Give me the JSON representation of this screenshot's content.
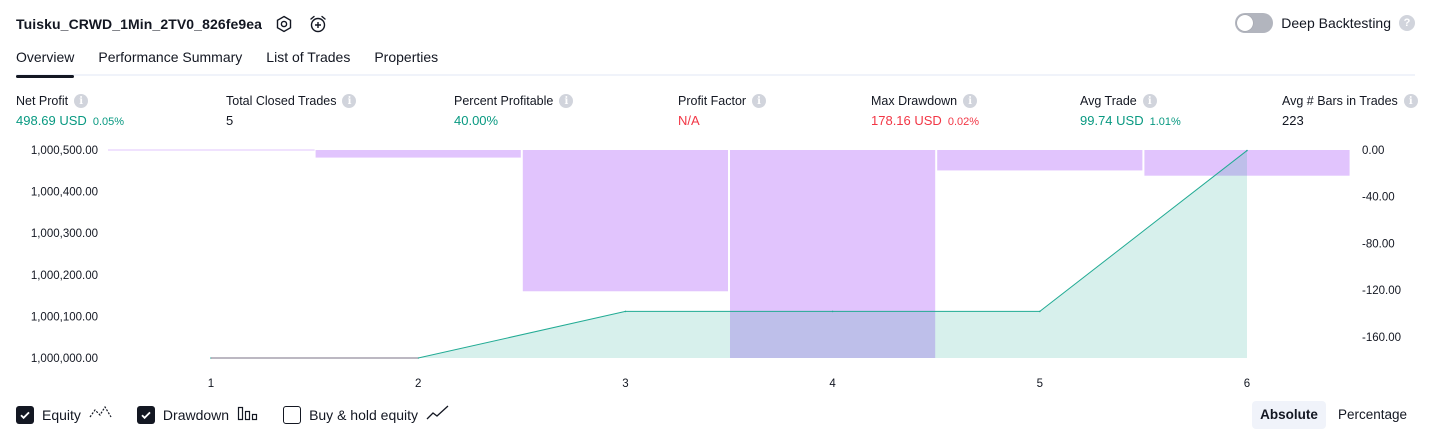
{
  "header": {
    "strategy_name": "Tuisku_CRWD_1Min_2TV0_826fe9ea",
    "settings_icon": "gear-icon",
    "alert_icon": "add-alert-clock-icon"
  },
  "deep_backtesting": {
    "label": "Deep Backtesting",
    "enabled": false,
    "help_icon": "?"
  },
  "tabs": [
    "Overview",
    "Performance Summary",
    "List of Trades",
    "Properties"
  ],
  "active_tab": "Overview",
  "metrics": [
    {
      "label": "Net Profit",
      "value": "498.69 USD",
      "pct": "0.05%",
      "color": "green"
    },
    {
      "label": "Total Closed Trades",
      "value": "5",
      "pct": "",
      "color": "dark"
    },
    {
      "label": "Percent Profitable",
      "value": "40.00%",
      "pct": "",
      "color": "green"
    },
    {
      "label": "Profit Factor",
      "value": "N/A",
      "pct": "",
      "color": "red"
    },
    {
      "label": "Max Drawdown",
      "value": "178.16 USD",
      "pct": "0.02%",
      "color": "red"
    },
    {
      "label": "Avg Trade",
      "value": "99.74 USD",
      "pct": "1.01%",
      "color": "green"
    },
    {
      "label": "Avg # Bars in Trades",
      "value": "223",
      "pct": "",
      "color": "dark"
    }
  ],
  "info_icon_text": "i",
  "colors": {
    "equity_line": "#22ab94",
    "equity_fill": "#d9f2ec",
    "drawdown": "#e1c4fd",
    "buy_hold": "#8e6ff0",
    "positive": "#089981",
    "negative": "#f23645"
  },
  "chart_data": {
    "type": "area",
    "x_ticks": [
      "1",
      "2",
      "3",
      "4",
      "5",
      "6"
    ],
    "left_axis": {
      "ticks": [
        "1,000,500.00",
        "1,000,400.00",
        "1,000,300.00",
        "1,000,200.00",
        "1,000,100.00",
        "1,000,000.00"
      ],
      "range": [
        1000000,
        1000500
      ]
    },
    "right_axis": {
      "ticks": [
        "0.00",
        "-40.00",
        "-80.00",
        "-120.00",
        "-160.00"
      ],
      "range": [
        -178.16,
        0
      ]
    },
    "series": [
      {
        "name": "Equity",
        "x": [
          1,
          2,
          3,
          4,
          5,
          6
        ],
        "values": [
          1000000,
          1000000,
          1000112,
          1000112,
          1000112,
          1000498.69
        ]
      },
      {
        "name": "Drawdown",
        "x": [
          1.5,
          2.5,
          3.5,
          4.5,
          5.5
        ],
        "values": [
          -6.5,
          -121,
          -178.16,
          -17.5,
          -22
        ]
      }
    ]
  },
  "legend": [
    {
      "label": "Equity",
      "checked": true,
      "icon": "equity-line-icon"
    },
    {
      "label": "Drawdown",
      "checked": true,
      "icon": "drawdown-bars-icon"
    },
    {
      "label": "Buy & hold equity",
      "checked": false,
      "icon": "buy-hold-line-icon"
    }
  ],
  "view_mode": {
    "options": [
      "Absolute",
      "Percentage"
    ],
    "selected": "Absolute"
  }
}
